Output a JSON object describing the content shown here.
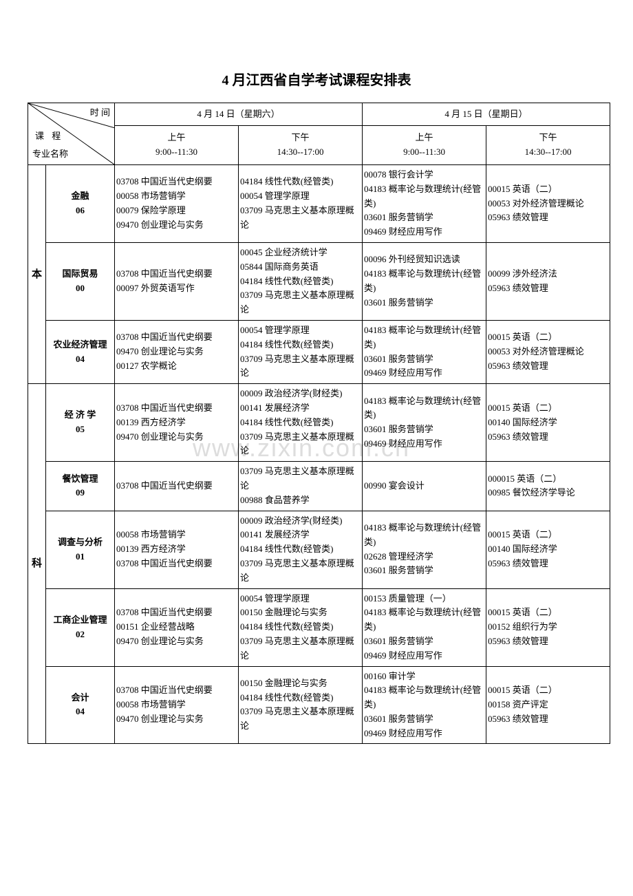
{
  "title": "4 月江西省自学考试课程安排表",
  "header": {
    "diag_top": "时 间",
    "diag_mid": "课  程",
    "diag_bot": "专业名称",
    "day1": "4 月 14 日（星期六）",
    "day2": "4 月 15 日（星期日）",
    "am_label": "上午",
    "pm_label": "下午",
    "am_time": "9:00--11:30",
    "pm_time": "14:30--17:00"
  },
  "category": {
    "ben": "本",
    "ke": "科"
  },
  "majors": [
    {
      "name_l1": "金融",
      "name_l2": "06",
      "s1": "03708 中国近当代史纲要\n00058 市场营销学\n00079 保险学原理\n09470 创业理论与实务",
      "s2": "04184 线性代数(经管类)\n00054 管理学原理\n03709 马克思主义基本原理概论",
      "s3": "00078 银行会计学\n04183 概率论与数理统计(经管类)\n03601 服务营销学\n09469 财经应用写作",
      "s4": "00015 英语（二）\n00053 对外经济管理概论\n05963 绩效管理"
    },
    {
      "name_l1": "国际贸易",
      "name_l2": "00",
      "s1": "03708 中国近当代史纲要\n00097 外贸英语写作",
      "s2": "00045 企业经济统计学\n05844 国际商务英语\n04184 线性代数(经管类)\n03709 马克思主义基本原理概论",
      "s3": "00096 外刊经贸知识选读\n04183 概率论与数理统计(经管类)\n03601 服务营销学",
      "s4": "00099 涉外经济法\n05963 绩效管理"
    },
    {
      "name_l1": "农业经济管理",
      "name_l2": "04",
      "s1": "03708 中国近当代史纲要\n09470 创业理论与实务\n00127 农学概论",
      "s2": "00054 管理学原理\n04184 线性代数(经管类)\n03709 马克思主义基本原理概论",
      "s3": "04183 概率论与数理统计(经管类)\n03601 服务营销学\n09469 财经应用写作",
      "s4": "00015 英语（二）\n00053 对外经济管理概论\n05963 绩效管理"
    },
    {
      "name_l1": "经 济 学",
      "name_l2": "05",
      "s1": "03708 中国近当代史纲要\n00139 西方经济学\n09470 创业理论与实务",
      "s2": "00009 政治经济学(财经类)\n00141 发展经济学\n04184 线性代数(经管类)\n03709 马克思主义基本原理概论",
      "s3": "04183 概率论与数理统计(经管类)\n03601 服务营销学\n09469 财经应用写作",
      "s4": "00015 英语（二）\n00140 国际经济学\n05963 绩效管理"
    },
    {
      "name_l1": "餐饮管理",
      "name_l2": "09",
      "s1": "03708 中国近当代史纲要",
      "s2": "03709 马克思主义基本原理概论\n00988 食品营养学",
      "s3": "00990 宴会设计",
      "s4": "000015 英语（二）\n00985 餐饮经济学导论"
    },
    {
      "name_l1": "调查与分析",
      "name_l2": "01",
      "s1": "00058 市场营销学\n00139 西方经济学\n03708 中国近当代史纲要",
      "s2": "00009 政治经济学(财经类)\n00141 发展经济学\n04184 线性代数(经管类)\n03709 马克思主义基本原理概论",
      "s3": "04183 概率论与数理统计(经管类)\n02628 管理经济学\n03601 服务营销学",
      "s4": "00015 英语（二）\n00140 国际经济学\n05963 绩效管理"
    },
    {
      "name_l1": "工商企业管理",
      "name_l2": "02",
      "s1": "03708 中国近当代史纲要\n00151 企业经营战略\n09470 创业理论与实务",
      "s2": "00054 管理学原理\n00150 金融理论与实务\n04184 线性代数(经管类)\n03709 马克思主义基本原理概论",
      "s3": "00153 质量管理（一）\n04183 概率论与数理统计(经管类)\n03601 服务营销学\n09469 财经应用写作",
      "s4": "00015 英语（二）\n00152 组织行为学\n05963 绩效管理"
    },
    {
      "name_l1": "会计",
      "name_l2": "04",
      "s1": "03708 中国近当代史纲要\n00058 市场营销学\n09470 创业理论与实务",
      "s2": "00150 金融理论与实务\n04184 线性代数(经管类)\n03709 马克思主义基本原理概论",
      "s3": "00160 审计学\n04183 概率论与数理统计(经管类)\n03601 服务营销学\n09469 财经应用写作",
      "s4": "00015 英语（二）\n00158 资产评定\n05963 绩效管理"
    }
  ],
  "watermark": "www.zixin.com.cn",
  "colors": {
    "border": "#000000",
    "bg": "#ffffff",
    "watermark": "#dddddd"
  },
  "fonts": {
    "title_size": 20,
    "cell_size": 13
  }
}
